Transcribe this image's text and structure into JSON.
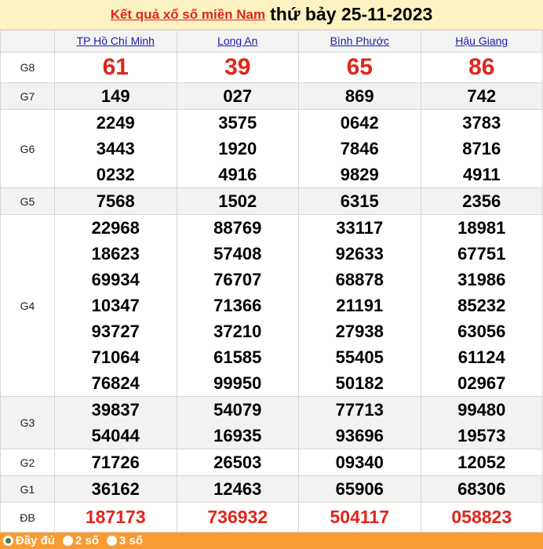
{
  "header": {
    "link": "Kết quả xổ số miền Nam",
    "date": "thứ bảy 25-11-2023"
  },
  "provinces": [
    "TP Hồ Chí Minh",
    "Long An",
    "Bình Phước",
    "Hậu Giang"
  ],
  "rows": [
    {
      "label": "G8",
      "style": "g8",
      "gray": false,
      "cells": [
        [
          "61"
        ],
        [
          "39"
        ],
        [
          "65"
        ],
        [
          "86"
        ]
      ]
    },
    {
      "label": "G7",
      "gray": true,
      "cells": [
        [
          "149"
        ],
        [
          "027"
        ],
        [
          "869"
        ],
        [
          "742"
        ]
      ]
    },
    {
      "label": "G6",
      "gray": false,
      "cells": [
        [
          "2249",
          "3443",
          "0232"
        ],
        [
          "3575",
          "1920",
          "4916"
        ],
        [
          "0642",
          "7846",
          "9829"
        ],
        [
          "3783",
          "8716",
          "4911"
        ]
      ]
    },
    {
      "label": "G5",
      "gray": true,
      "cells": [
        [
          "7568"
        ],
        [
          "1502"
        ],
        [
          "6315"
        ],
        [
          "2356"
        ]
      ]
    },
    {
      "label": "G4",
      "gray": false,
      "cells": [
        [
          "22968",
          "18623",
          "69934",
          "10347",
          "93727",
          "71064",
          "76824"
        ],
        [
          "88769",
          "57408",
          "76707",
          "71366",
          "37210",
          "61585",
          "99950"
        ],
        [
          "33117",
          "92633",
          "68878",
          "21191",
          "27938",
          "55405",
          "50182"
        ],
        [
          "18981",
          "67751",
          "31986",
          "85232",
          "63056",
          "61124",
          "02967"
        ]
      ]
    },
    {
      "label": "G3",
      "gray": true,
      "cells": [
        [
          "39837",
          "54044"
        ],
        [
          "54079",
          "16935"
        ],
        [
          "77713",
          "93696"
        ],
        [
          "99480",
          "19573"
        ]
      ]
    },
    {
      "label": "G2",
      "gray": false,
      "cells": [
        [
          "71726"
        ],
        [
          "26503"
        ],
        [
          "09340"
        ],
        [
          "12052"
        ]
      ]
    },
    {
      "label": "G1",
      "gray": true,
      "cells": [
        [
          "36162"
        ],
        [
          "12463"
        ],
        [
          "65906"
        ],
        [
          "68306"
        ]
      ]
    },
    {
      "label": "ĐB",
      "style": "db",
      "gray": false,
      "cells": [
        [
          "187173"
        ],
        [
          "736932"
        ],
        [
          "504117"
        ],
        [
          "058823"
        ]
      ]
    }
  ],
  "footer": {
    "options": [
      {
        "label": "Đầy đủ",
        "selected": true
      },
      {
        "label": "2 số",
        "selected": false
      },
      {
        "label": "3 số",
        "selected": false
      }
    ]
  },
  "colors": {
    "accent": "#e1251b",
    "header_bg": "#fdf2c2",
    "footer_bg": "#f99b31",
    "link": "#1a1aa6"
  }
}
